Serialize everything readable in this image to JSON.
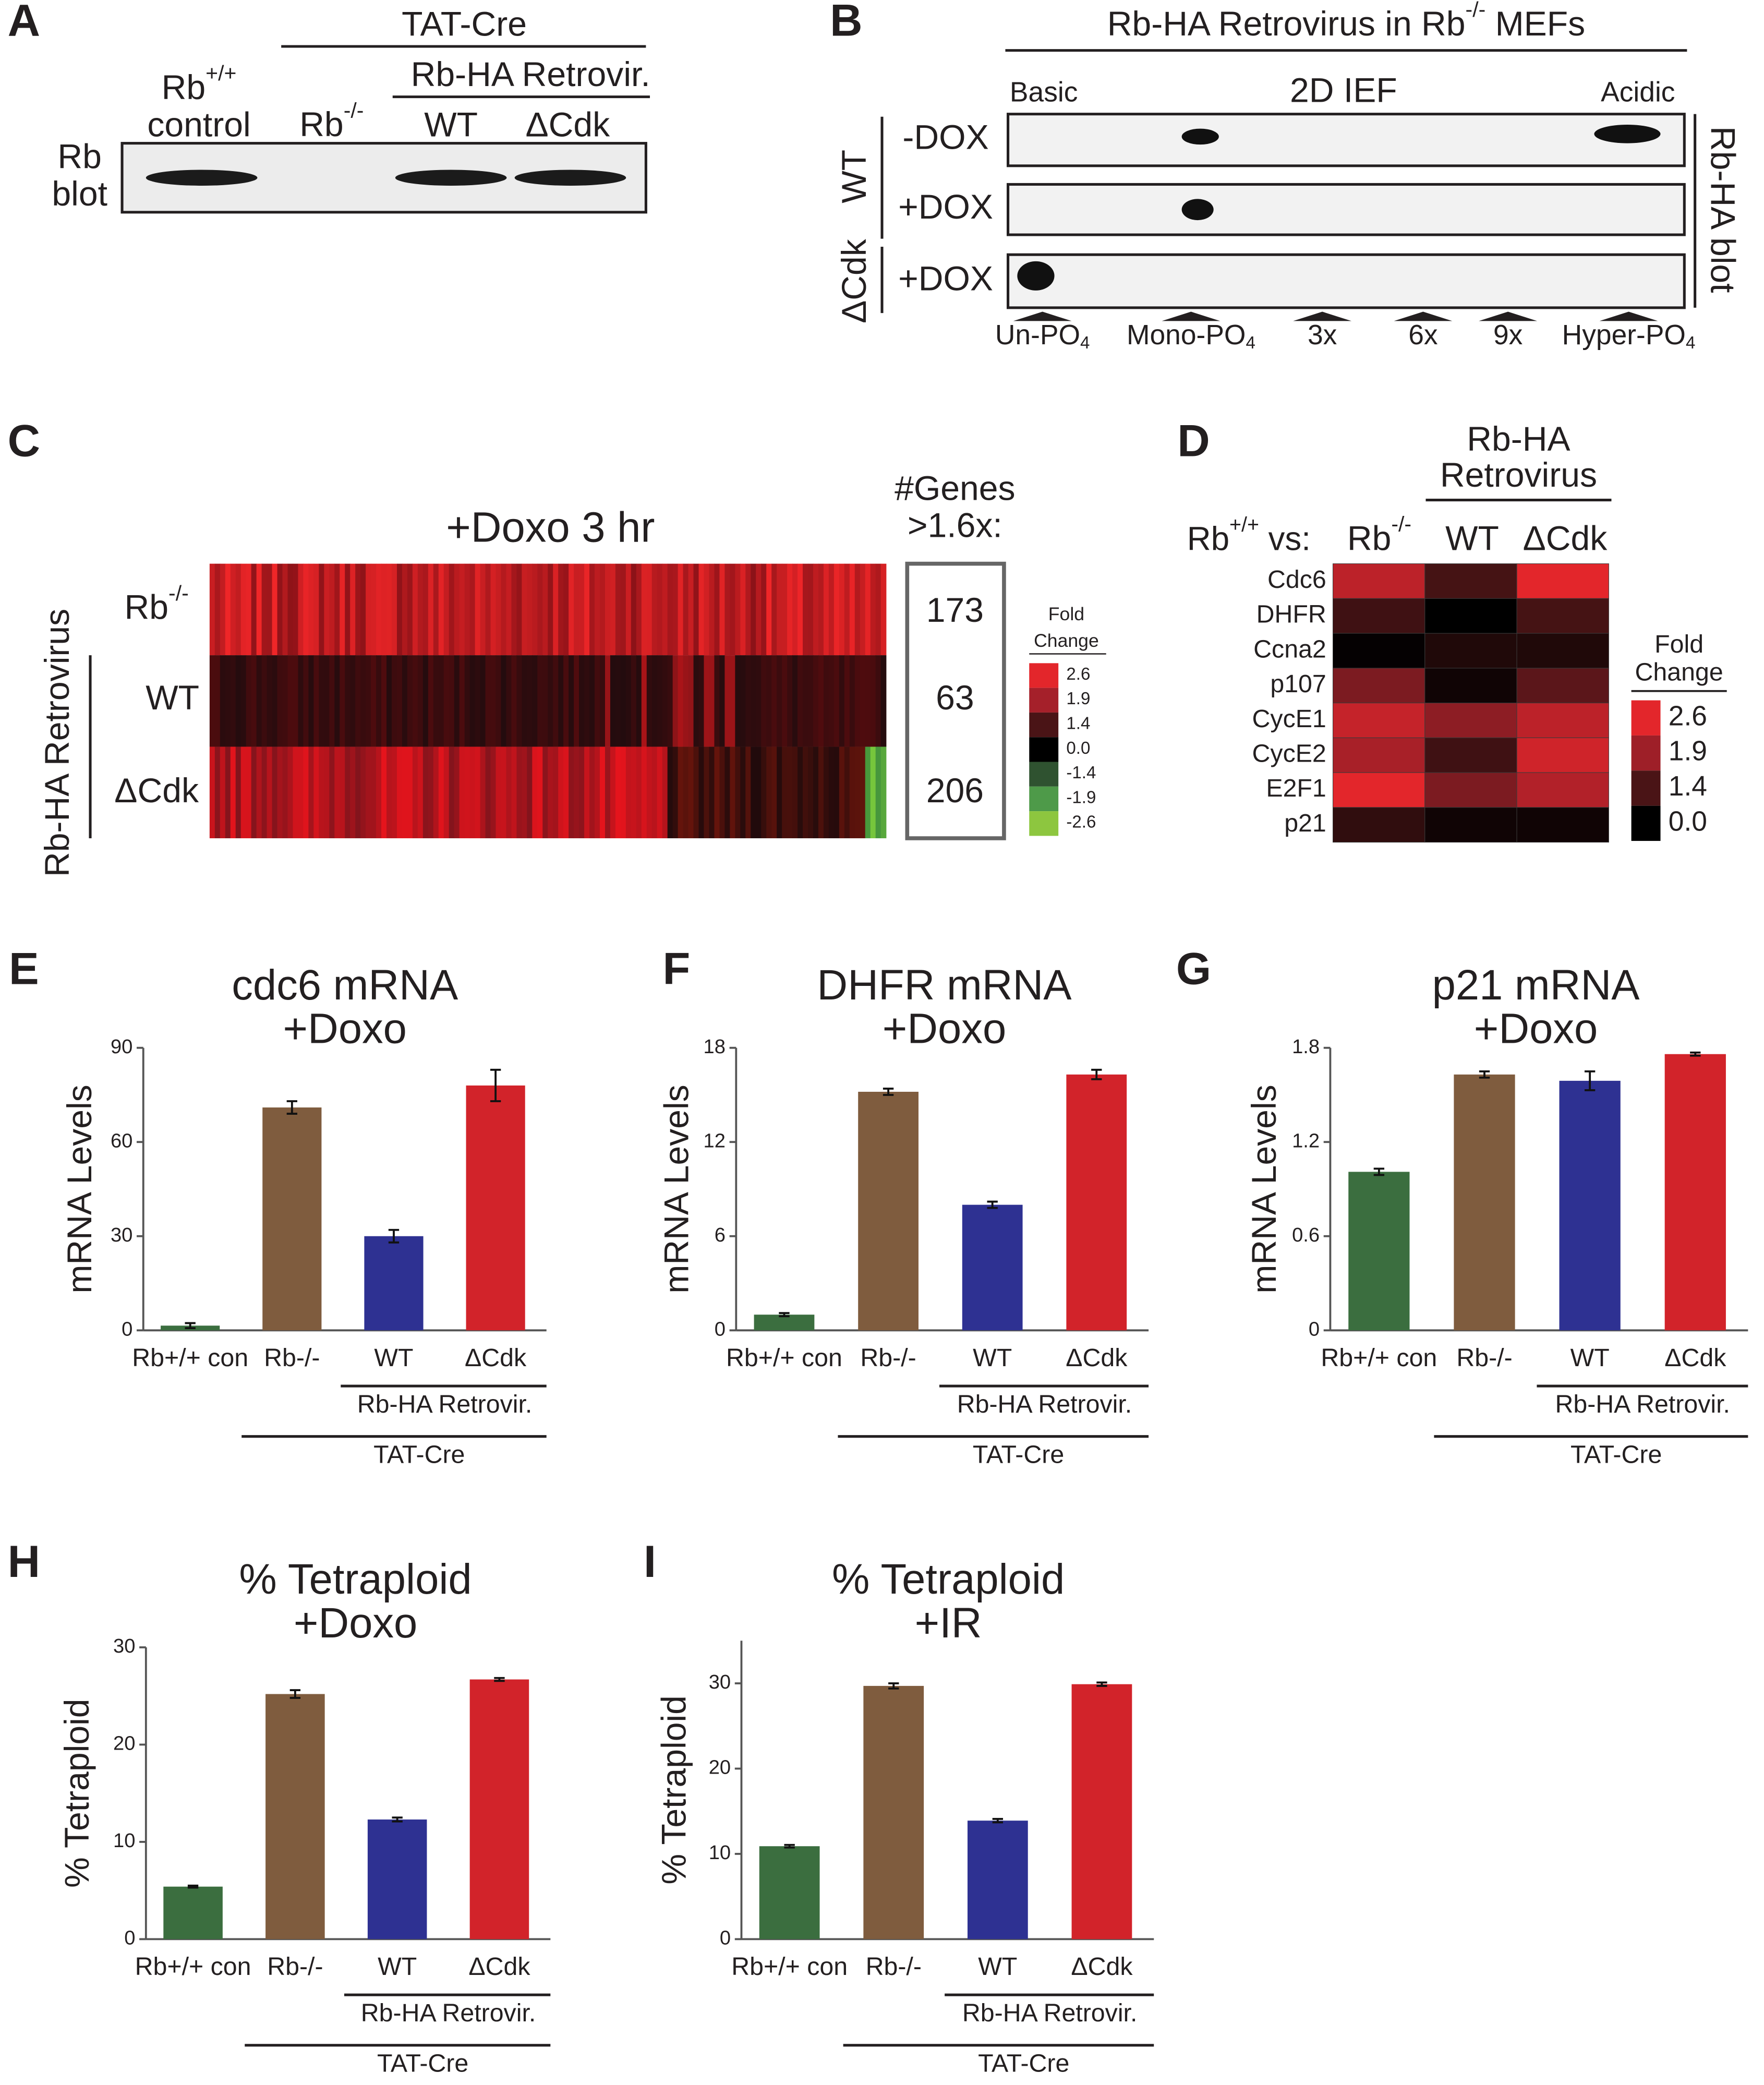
{
  "panel_labels": [
    "A",
    "B",
    "C",
    "D",
    "E",
    "F",
    "G",
    "H",
    "I"
  ],
  "panel_a": {
    "header": "TAT-Cre",
    "subheader": "Rb-HA Retrovir.",
    "columns": [
      {
        "base": "Rb",
        "sup": "+/+",
        "line2": "control"
      },
      {
        "base": "Rb",
        "sup": "-/-"
      },
      {
        "base": "WT"
      },
      {
        "base": "ΔCdk"
      }
    ],
    "row_label": [
      "Rb",
      "blot"
    ]
  },
  "panel_b": {
    "title": {
      "text": "Rb-HA Retrovirus in Rb",
      "sup": "-/-",
      "end": " MEFs"
    },
    "method": "2D IEF",
    "left_end": "Basic",
    "right_end": "Acidic",
    "rows": [
      "-DOX",
      "+DOX",
      "+DOX"
    ],
    "groups": [
      "WT",
      "ΔCdk"
    ],
    "side_label": "Rb-HA blot",
    "positions": [
      {
        "text": "Un-PO",
        "sub": "4",
        "color": "#2e3192"
      },
      {
        "text": "Mono-PO",
        "sub": "4",
        "color": "#29abe2"
      },
      {
        "text": "3x",
        "color": "#231f20"
      },
      {
        "text": "6x",
        "color": "#231f20"
      },
      {
        "text": "9x",
        "color": "#231f20"
      },
      {
        "text": "Hyper-PO",
        "sub": "4",
        "color": "#e07a2c"
      }
    ]
  },
  "panel_c": {
    "title": "+Doxo 3 hr",
    "rows": [
      {
        "base": "Rb",
        "sup": "-/-"
      },
      {
        "base": "WT"
      },
      {
        "base": "ΔCdk"
      }
    ],
    "group": "Rb-HA Retrovirus",
    "counts_header": [
      "#Genes",
      ">1.6x:"
    ],
    "counts": [
      173,
      63,
      206
    ],
    "legend_title": [
      "Fold",
      "Change"
    ],
    "legend_ticks": [
      2.6,
      1.9,
      1.4,
      {
        "value": 0,
        "label": "0.0"
      },
      -1.4,
      -1.9,
      -2.6
    ],
    "legend_colors": [
      "#e3262b",
      "#a5202a",
      "#4a1416",
      "#000000",
      "#2f5230",
      "#4e9a49",
      "#8dc63f"
    ]
  },
  "chart_data": [
    {
      "type": "heatmap",
      "header": [
        "Rb-HA",
        "Retrovirus"
      ],
      "corner": {
        "base": "Rb",
        "sup": "+/+",
        "end": " vs:"
      },
      "columns": [
        {
          "base": "Rb",
          "sup": "-/-"
        },
        {
          "base": "WT"
        },
        {
          "base": "ΔCdk"
        }
      ],
      "rows": [
        "Cdc6",
        "DHFR",
        "Ccna2",
        "p107",
        "CycE1",
        "CycE2",
        "E2F1",
        "p21"
      ],
      "values": [
        [
          2.2,
          1.3,
          2.6
        ],
        [
          1.2,
          0.0,
          1.3
        ],
        [
          0.1,
          0.6,
          0.6
        ],
        [
          1.7,
          0.3,
          1.5
        ],
        [
          2.3,
          1.8,
          2.2
        ],
        [
          2.0,
          1.2,
          2.4
        ],
        [
          2.6,
          1.7,
          2.1
        ],
        [
          0.9,
          0.3,
          0.3
        ]
      ],
      "legend_title": [
        "Fold",
        "Change"
      ],
      "legend_ticks": [
        2.6,
        1.9,
        1.4,
        {
          "value": 0,
          "label": "0.0"
        }
      ],
      "legend_colors": [
        "#e3262b",
        "#9e1f28",
        "#4a1416",
        "#000000"
      ]
    },
    {
      "type": "bar",
      "title": "cdc6 mRNA",
      "subtitle": "+Doxo",
      "ylabel": "mRNA Levels",
      "categories": [
        "Rb+/+ con",
        "Rb-/-",
        "WT",
        "ΔCdk"
      ],
      "values": [
        1.5,
        71,
        30,
        78
      ],
      "errors": [
        0.8,
        2,
        2,
        5
      ],
      "colors": [
        "#3b6e3f",
        "#7f5c3e",
        "#2e3192",
        "#d2232a"
      ],
      "ylim": [
        0,
        90
      ],
      "yticks": [
        0,
        30,
        60,
        90
      ],
      "group_labels": [
        "Rb-HA Retrovir.",
        "TAT-Cre"
      ]
    },
    {
      "type": "bar",
      "title": "DHFR mRNA",
      "subtitle": "+Doxo",
      "ylabel": "mRNA Levels",
      "categories": [
        "Rb+/+ con",
        "Rb-/-",
        "WT",
        "ΔCdk"
      ],
      "values": [
        1.0,
        15.2,
        8.0,
        16.3
      ],
      "errors": [
        0.1,
        0.2,
        0.2,
        0.3
      ],
      "colors": [
        "#3b6e3f",
        "#7f5c3e",
        "#2e3192",
        "#d2232a"
      ],
      "ylim": [
        0,
        18
      ],
      "yticks": [
        0,
        6,
        12,
        18
      ],
      "group_labels": [
        "Rb-HA Retrovir.",
        "TAT-Cre"
      ]
    },
    {
      "type": "bar",
      "title": "p21 mRNA",
      "subtitle": "+Doxo",
      "ylabel": "mRNA Levels",
      "categories": [
        "Rb+/+ con",
        "Rb-/-",
        "WT",
        "ΔCdk"
      ],
      "values": [
        1.01,
        1.63,
        1.59,
        1.76
      ],
      "errors": [
        0.02,
        0.02,
        0.06,
        0.01
      ],
      "colors": [
        "#3b6e3f",
        "#7f5c3e",
        "#2e3192",
        "#d2232a"
      ],
      "ylim": [
        0,
        1.8
      ],
      "yticks": [
        0,
        0.6,
        1.2,
        1.8
      ],
      "group_labels": [
        "Rb-HA Retrovir.",
        "TAT-Cre"
      ]
    },
    {
      "type": "bar",
      "title": "% Tetraploid",
      "subtitle": "+Doxo",
      "ylabel": "% Tetraploid",
      "categories": [
        "Rb+/+ con",
        "Rb-/-",
        "WT",
        "ΔCdk"
      ],
      "values": [
        5.4,
        25.2,
        12.3,
        26.7
      ],
      "errors": [
        0.1,
        0.4,
        0.2,
        0.15
      ],
      "colors": [
        "#3b6e3f",
        "#7f5c3e",
        "#2e3192",
        "#d2232a"
      ],
      "ylim": [
        0,
        30
      ],
      "yticks": [
        0,
        10,
        20,
        30
      ],
      "group_labels": [
        "Rb-HA Retrovir.",
        "TAT-Cre"
      ]
    },
    {
      "type": "bar",
      "title": "% Tetraploid",
      "subtitle": "+IR",
      "ylabel": "% Tetraploid",
      "categories": [
        "Rb+/+ con",
        "Rb-/-",
        "WT",
        "ΔCdk"
      ],
      "values": [
        10.9,
        29.7,
        13.9,
        29.9
      ],
      "errors": [
        0.15,
        0.3,
        0.2,
        0.2
      ],
      "colors": [
        "#3b6e3f",
        "#7f5c3e",
        "#2e3192",
        "#d2232a"
      ],
      "ylim": [
        0,
        35
      ],
      "yticks": [
        0,
        10,
        20,
        30
      ],
      "group_labels": [
        "Rb-HA Retrovir.",
        "TAT-Cre"
      ]
    }
  ]
}
